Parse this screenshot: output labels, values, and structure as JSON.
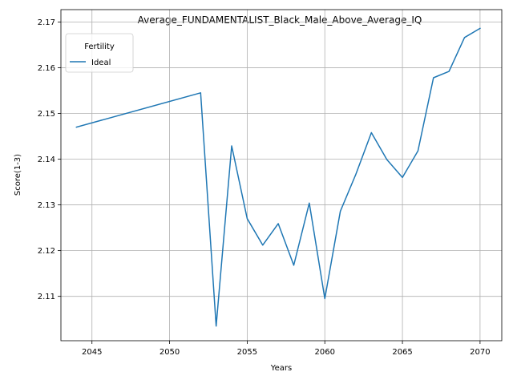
{
  "chart_data": {
    "type": "line",
    "title": "Average_FUNDAMENTALIST_Black_Male_Above_Average_IQ",
    "xlabel": "Years",
    "ylabel": "Score(1-3)",
    "xlim": [
      2043,
      2071.4
    ],
    "ylim": [
      2.1003,
      2.1727
    ],
    "xticks": [
      2045,
      2050,
      2055,
      2060,
      2065,
      2070
    ],
    "yticks": [
      2.11,
      2.12,
      2.13,
      2.14,
      2.15,
      2.16,
      2.17
    ],
    "xtick_labels": [
      "2045",
      "2050",
      "2055",
      "2060",
      "2065",
      "2070"
    ],
    "ytick_labels": [
      "2.11",
      "2.12",
      "2.13",
      "2.14",
      "2.15",
      "2.16",
      "2.17"
    ],
    "grid": true,
    "legend": {
      "title": "Fertility",
      "position": "upper left"
    },
    "series": [
      {
        "name": "Ideal",
        "color": "#1f77b4",
        "x": [
          2044,
          2052,
          2053,
          2054,
          2055,
          2056,
          2057,
          2058,
          2059,
          2060,
          2061,
          2062,
          2063,
          2064,
          2065,
          2066,
          2067,
          2068,
          2069,
          2070
        ],
        "y": [
          2.147,
          2.1545,
          2.1035,
          2.1429,
          2.127,
          2.1212,
          2.1259,
          2.1168,
          2.1304,
          2.1095,
          2.1286,
          2.1367,
          2.1458,
          2.1399,
          2.136,
          2.1418,
          2.1578,
          2.1592,
          2.1666,
          2.1686
        ]
      }
    ]
  }
}
